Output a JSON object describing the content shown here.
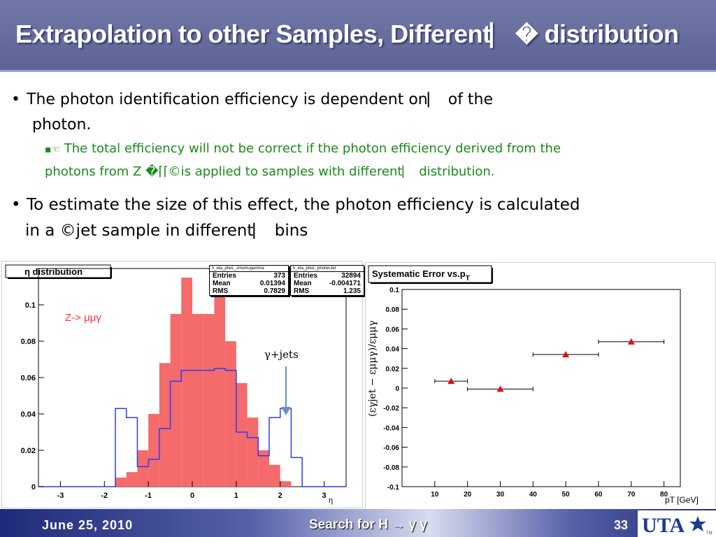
{
  "slide": {
    "title": "Extrapolation to other Samples, Different⎸� distribution",
    "bullets": [
      {
        "line1": "The photon identification efficiency is dependent on⎸  of the",
        "line2": "photon."
      },
      {
        "line1": "To estimate the size of this effect, the photon efficiency is calculated",
        "line2": "in a ©jet sample in different⎸  bins"
      }
    ],
    "sub_bullet": {
      "marker": "▪☜",
      "line1": "The total efficiency will not be correct if the photon efficiency derived from the",
      "line2": "photons from Z �⌈⌈©is applied to samples with different⎸  distribution."
    },
    "bullet_marker": "•"
  },
  "left_plot": {
    "title": "η distribution",
    "xlabel": "η",
    "label_zmmg": "Z-> μμγ",
    "label_gjets": "γ+jets",
    "statbox_zmmg": {
      "header": "h_eta_phoL_zmumugamma",
      "rows": [
        [
          "Entries",
          "373"
        ],
        [
          "Mean",
          "0.01394"
        ],
        [
          "RMS",
          "0.7829"
        ]
      ]
    },
    "statbox_gjet": {
      "header": "h_eta_phoL_photonJet",
      "rows": [
        [
          "Entries",
          "32894"
        ],
        [
          "Mean",
          "-0.004171"
        ],
        [
          "RMS",
          "1.235"
        ]
      ]
    }
  },
  "right_plot": {
    "title": "Systematic Error vs.p",
    "title_sub": "T",
    "xlabel": "pT [GeV]",
    "ylabel": "(εγjet − εμμγ)/εμμγ"
  },
  "chart_data": [
    {
      "type": "histogram",
      "title": "η distribution",
      "xlabel": "η",
      "xlim": [
        -3.5,
        3.5
      ],
      "ylim": [
        0,
        0.12
      ],
      "xticks": [
        -3,
        -2,
        -1,
        0,
        1,
        2,
        3
      ],
      "yticks": [
        0,
        0.02,
        0.04,
        0.06,
        0.08,
        0.1
      ],
      "bin_edges": [
        -3.5,
        -3.25,
        -3,
        -2.75,
        -2.5,
        -2.25,
        -2,
        -1.75,
        -1.5,
        -1.25,
        -1,
        -0.75,
        -0.5,
        -0.25,
        0,
        0.25,
        0.5,
        0.75,
        1,
        1.25,
        1.5,
        1.75,
        2,
        2.25,
        2.5,
        2.75,
        3,
        3.25,
        3.5
      ],
      "series": [
        {
          "name": "Z-> μμγ",
          "color": "#f56a6a",
          "fill": true,
          "values": [
            0,
            0,
            0,
            0,
            0,
            0,
            0,
            0.005,
            0.008,
            0.02,
            0.04,
            0.068,
            0.095,
            0.115,
            0.095,
            0.095,
            0.105,
            0.08,
            0.057,
            0.038,
            0.02,
            0.012,
            0.003,
            0,
            0,
            0,
            0,
            0
          ]
        },
        {
          "name": "γ+jets",
          "color": "#2a3cff",
          "fill": false,
          "values": [
            0,
            0,
            0,
            0,
            0,
            0,
            0,
            0.043,
            0.038,
            0.011,
            0.015,
            0.032,
            0.058,
            0.064,
            0.064,
            0.064,
            0.065,
            0.064,
            0.03,
            0.027,
            0.017,
            0.038,
            0.043,
            0.016,
            0,
            0,
            0,
            0
          ]
        }
      ]
    },
    {
      "type": "scatter",
      "title": "Systematic Error vs.pT",
      "xlabel": "pT [GeV]",
      "ylabel": "(εγjet − εμμγ)/εμμγ",
      "xlim": [
        0,
        85
      ],
      "ylim": [
        -0.1,
        0.1
      ],
      "xticks": [
        10,
        20,
        30,
        40,
        50,
        60,
        70,
        80
      ],
      "yticks": [
        -0.1,
        -0.08,
        -0.06,
        -0.04,
        -0.02,
        0,
        0.02,
        0.04,
        0.06,
        0.08,
        0.1
      ],
      "points": [
        {
          "x": 15,
          "y": 0.007,
          "xerr": [
            10,
            20
          ]
        },
        {
          "x": 30,
          "y": -0.001,
          "xerr": [
            20,
            40
          ]
        },
        {
          "x": 50,
          "y": 0.034,
          "xerr": [
            40,
            60
          ]
        },
        {
          "x": 70,
          "y": 0.047,
          "xerr": [
            60,
            80
          ]
        }
      ],
      "marker_color": "#e01010"
    }
  ],
  "footer": {
    "date": "June 25, 2010",
    "center": "Search for H → γ γ",
    "page": "33",
    "logo_text": "UTA",
    "tm": "TM"
  }
}
